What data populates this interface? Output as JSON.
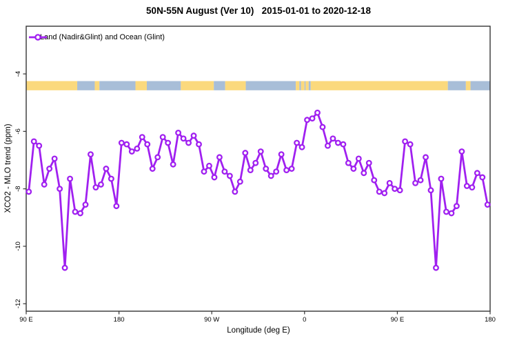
{
  "colors": {
    "series": "#A020F0",
    "marker_fill": "#FFFFFF",
    "land": "#FBD97D",
    "ocean": "#A8BED8",
    "axis": "#333333",
    "text": "#000000"
  },
  "chart_data": {
    "type": "line",
    "title": "50N-55N August (Ver 10)   2015-01-01 to 2020-12-18",
    "xlabel": "Longitude (deg E)",
    "ylabel": "XCO2 - MLO trend (ppm)",
    "series_name": "Land (Nadir&Glint) and Ocean (Glint)",
    "legend_position": "top-left",
    "grid": false,
    "marker": "open-circle",
    "xlim": [
      90,
      540
    ],
    "ylim": [
      -12.26,
      -2.34
    ],
    "x_ticks": [
      {
        "value": 90,
        "label": "90 E"
      },
      {
        "value": 180,
        "label": "180"
      },
      {
        "value": 270,
        "label": "90 W"
      },
      {
        "value": 360,
        "label": "0"
      },
      {
        "value": 450,
        "label": "90 E"
      },
      {
        "value": 540,
        "label": "180"
      }
    ],
    "y_ticks": [
      {
        "value": -4,
        "label": "-4"
      },
      {
        "value": -6,
        "label": "-6"
      },
      {
        "value": -8,
        "label": "-8"
      },
      {
        "value": -10,
        "label": "-10"
      },
      {
        "value": -12,
        "label": "-12"
      }
    ],
    "x": [
      92.5,
      97.5,
      102.5,
      107.5,
      112.5,
      117.5,
      122.5,
      127.5,
      132.5,
      137.5,
      142.5,
      147.5,
      152.5,
      157.5,
      162.5,
      167.5,
      172.5,
      177.5,
      182.5,
      187.5,
      192.5,
      197.5,
      202.5,
      207.5,
      212.5,
      217.5,
      222.5,
      227.5,
      232.5,
      237.5,
      242.5,
      247.5,
      252.5,
      257.5,
      262.5,
      267.5,
      272.5,
      277.5,
      282.5,
      287.5,
      292.5,
      297.5,
      302.5,
      307.5,
      312.5,
      317.5,
      322.5,
      327.5,
      332.5,
      337.5,
      342.5,
      347.5,
      352.5,
      357.5,
      362.5,
      367.5,
      372.5,
      377.5,
      382.5,
      387.5,
      392.5,
      397.5,
      402.5,
      407.5,
      412.5,
      417.5,
      422.5,
      427.5,
      432.5,
      437.5,
      442.5,
      447.5,
      452.5,
      457.5,
      462.5,
      467.5,
      472.5,
      477.5,
      482.5,
      487.5,
      492.5,
      497.5,
      502.5,
      507.5,
      512.5,
      517.5,
      522.5,
      527.5,
      532.5,
      537.5
    ],
    "y": [
      -8.1,
      -6.35,
      -6.5,
      -7.85,
      -7.3,
      -6.95,
      -8.0,
      -10.75,
      -7.65,
      -8.8,
      -8.85,
      -8.55,
      -6.8,
      -7.95,
      -7.85,
      -7.3,
      -7.65,
      -8.6,
      -6.4,
      -6.45,
      -6.7,
      -6.6,
      -6.2,
      -6.45,
      -7.3,
      -6.9,
      -6.2,
      -6.4,
      -7.15,
      -6.05,
      -6.25,
      -6.4,
      -6.15,
      -6.45,
      -7.4,
      -7.2,
      -7.6,
      -6.9,
      -7.4,
      -7.55,
      -8.1,
      -7.75,
      -6.75,
      -7.35,
      -7.1,
      -6.7,
      -7.3,
      -7.55,
      -7.4,
      -6.8,
      -7.35,
      -7.3,
      -6.4,
      -6.55,
      -5.6,
      -5.55,
      -5.35,
      -5.85,
      -6.5,
      -6.25,
      -6.4,
      -6.45,
      -7.1,
      -7.3,
      -6.95,
      -7.45,
      -7.1,
      -7.7,
      -8.1,
      -8.15,
      -7.8,
      -8.0,
      -8.05,
      -6.35,
      -6.45,
      -7.8,
      -7.7,
      -6.9,
      -8.05,
      -10.75,
      -7.65,
      -8.8,
      -8.85,
      -8.6,
      -6.7,
      -7.9,
      -7.95,
      -7.45,
      -7.6,
      -8.55
    ],
    "land_ocean_band": {
      "y_value": -4.41,
      "height_ppm": 0.32,
      "segments": [
        {
          "from": 90,
          "to": 139.5,
          "type": "land"
        },
        {
          "from": 139.5,
          "to": 156.5,
          "type": "ocean"
        },
        {
          "from": 156.5,
          "to": 161,
          "type": "land"
        },
        {
          "from": 161,
          "to": 196,
          "type": "ocean"
        },
        {
          "from": 196,
          "to": 207,
          "type": "land"
        },
        {
          "from": 207,
          "to": 240,
          "type": "ocean"
        },
        {
          "from": 240,
          "to": 272,
          "type": "land"
        },
        {
          "from": 272,
          "to": 283,
          "type": "ocean"
        },
        {
          "from": 283,
          "to": 303,
          "type": "land"
        },
        {
          "from": 303,
          "to": 351.5,
          "type": "ocean"
        },
        {
          "from": 351.5,
          "to": 355,
          "type": "land"
        },
        {
          "from": 355,
          "to": 356.5,
          "type": "ocean"
        },
        {
          "from": 356.5,
          "to": 360,
          "type": "land"
        },
        {
          "from": 360,
          "to": 361,
          "type": "ocean"
        },
        {
          "from": 361,
          "to": 364,
          "type": "land"
        },
        {
          "from": 364,
          "to": 366,
          "type": "ocean"
        },
        {
          "from": 366,
          "to": 499,
          "type": "land"
        },
        {
          "from": 499,
          "to": 516.5,
          "type": "ocean"
        },
        {
          "from": 516.5,
          "to": 521,
          "type": "land"
        },
        {
          "from": 521,
          "to": 540,
          "type": "ocean"
        }
      ]
    }
  }
}
